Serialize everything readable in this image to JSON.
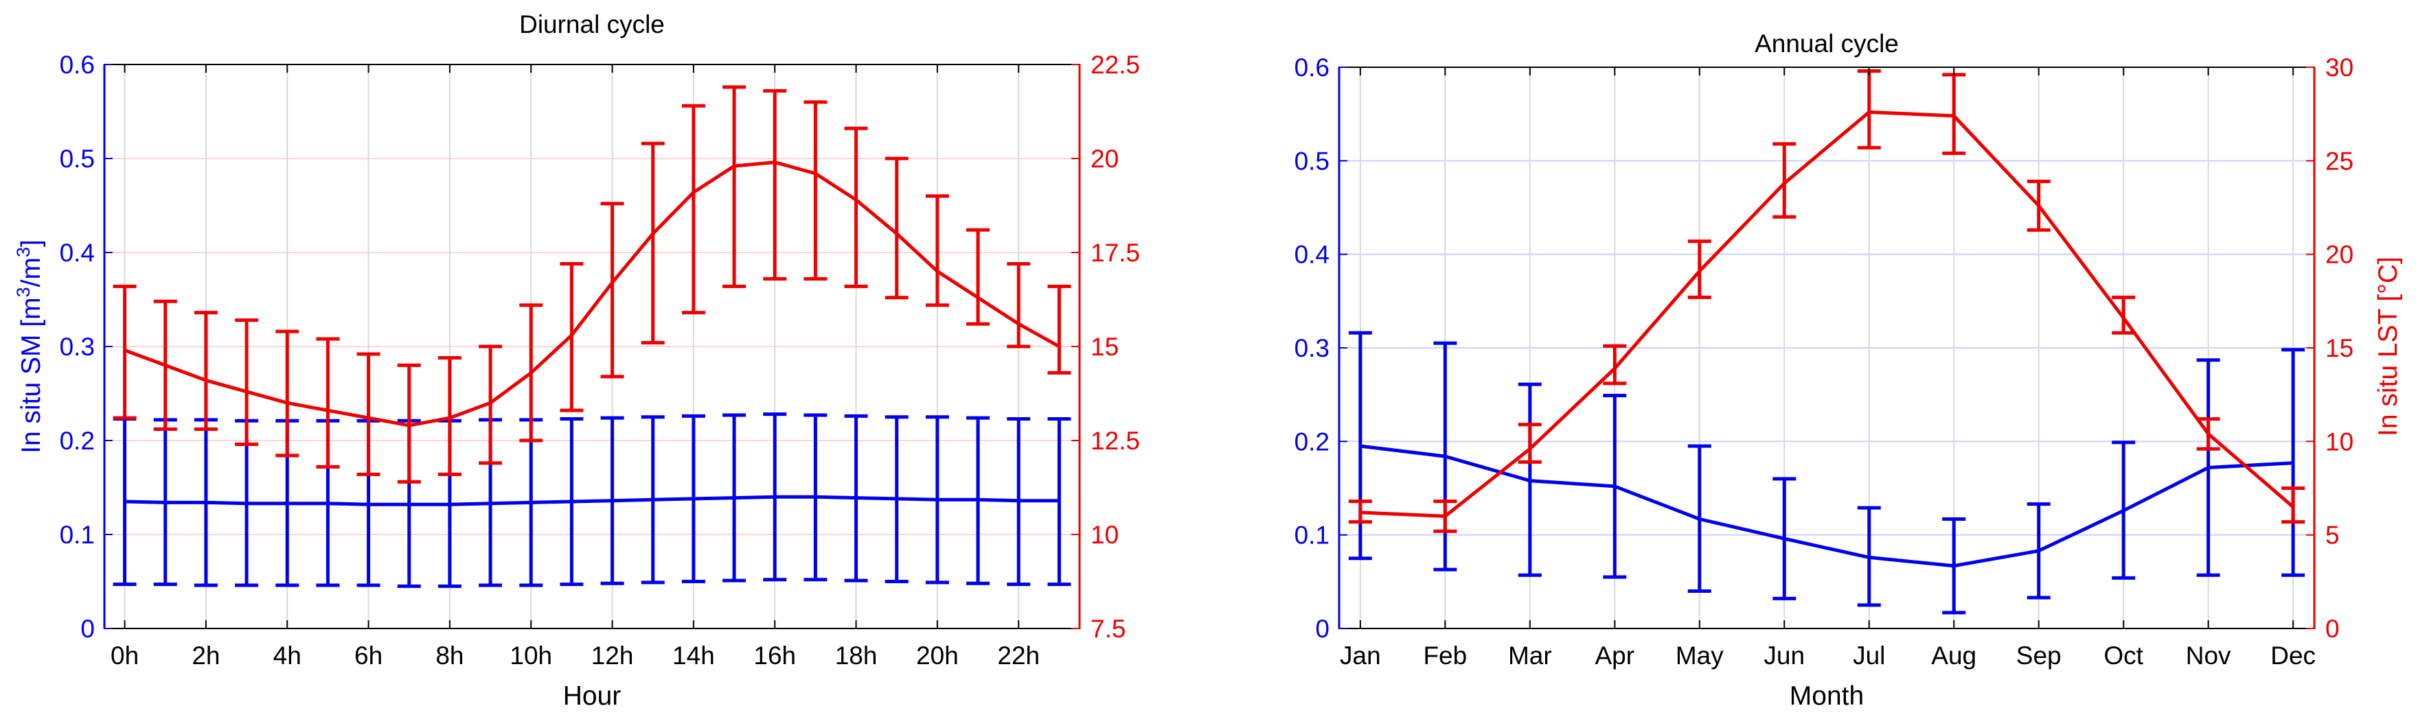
{
  "chart_data": [
    {
      "type": "line",
      "title": "Diurnal cycle",
      "xlabel": "Hour",
      "ylabel_left": "In situ SM [m³/m³]",
      "ylabel_left_parts": {
        "pre": "In situ SM [m",
        "sup1": "3",
        "mid": "/m",
        "sup2": "3",
        "post": "]"
      },
      "ylabel_right": "",
      "x": [
        0,
        1,
        2,
        3,
        4,
        5,
        6,
        7,
        8,
        9,
        10,
        11,
        12,
        13,
        14,
        15,
        16,
        17,
        18,
        19,
        20,
        21,
        22,
        23
      ],
      "xlim": [
        -0.5,
        23.5
      ],
      "xticks": [
        0,
        2,
        4,
        6,
        8,
        10,
        12,
        14,
        16,
        18,
        20,
        22
      ],
      "xticklabels": [
        "0h",
        "2h",
        "4h",
        "6h",
        "8h",
        "10h",
        "12h",
        "14h",
        "16h",
        "18h",
        "20h",
        "22h"
      ],
      "ylim_left": [
        0,
        0.6
      ],
      "yticks_left": [
        "0",
        "0.1",
        "0.2",
        "0.3",
        "0.4",
        "0.5",
        "0.6"
      ],
      "ylim_right": [
        7.5,
        22.5
      ],
      "yticks_right": [
        "7.5",
        "10",
        "12.5",
        "15",
        "17.5",
        "20",
        "22.5"
      ],
      "grid": true,
      "series": [
        {
          "axis": "left",
          "color": "#0000ee",
          "values": [
            0.135,
            0.134,
            0.134,
            0.133,
            0.133,
            0.133,
            0.132,
            0.132,
            0.132,
            0.133,
            0.134,
            0.135,
            0.136,
            0.137,
            0.138,
            0.139,
            0.14,
            0.14,
            0.139,
            0.138,
            0.137,
            0.137,
            0.136,
            0.136
          ],
          "lower": [
            0.047,
            0.047,
            0.046,
            0.046,
            0.046,
            0.046,
            0.046,
            0.045,
            0.045,
            0.046,
            0.046,
            0.047,
            0.048,
            0.049,
            0.05,
            0.051,
            0.052,
            0.052,
            0.051,
            0.05,
            0.049,
            0.048,
            0.047,
            0.047
          ],
          "upper": [
            0.223,
            0.222,
            0.222,
            0.221,
            0.221,
            0.221,
            0.221,
            0.221,
            0.221,
            0.222,
            0.222,
            0.223,
            0.224,
            0.225,
            0.226,
            0.227,
            0.228,
            0.227,
            0.226,
            0.225,
            0.225,
            0.224,
            0.223,
            0.223
          ]
        },
        {
          "axis": "right",
          "color": "#ee0000",
          "values": [
            14.9,
            14.5,
            14.1,
            13.8,
            13.5,
            13.3,
            13.1,
            12.9,
            13.1,
            13.5,
            14.3,
            15.3,
            16.7,
            18.0,
            19.1,
            19.8,
            19.9,
            19.6,
            18.9,
            18.0,
            17.0,
            16.3,
            15.6,
            15.0
          ],
          "lower": [
            13.1,
            12.8,
            12.8,
            12.4,
            12.1,
            11.8,
            11.6,
            11.4,
            11.6,
            11.9,
            12.5,
            13.3,
            14.2,
            15.1,
            15.9,
            16.6,
            16.8,
            16.8,
            16.6,
            16.3,
            16.1,
            15.6,
            15.0,
            14.3
          ],
          "upper": [
            16.6,
            16.2,
            15.9,
            15.7,
            15.4,
            15.2,
            14.8,
            14.5,
            14.7,
            15.0,
            16.1,
            17.2,
            18.8,
            20.4,
            21.4,
            21.9,
            21.8,
            21.5,
            20.8,
            20.0,
            19.0,
            18.1,
            17.2,
            16.6
          ]
        }
      ]
    },
    {
      "type": "line",
      "title": "Annual cycle",
      "xlabel": "Month",
      "ylabel_left": "",
      "ylabel_right": "In situ LST [°C]",
      "categories": [
        "Jan",
        "Feb",
        "Mar",
        "Apr",
        "May",
        "Jun",
        "Jul",
        "Aug",
        "Sep",
        "Oct",
        "Nov",
        "Dec"
      ],
      "xlim": [
        0.75,
        12.25
      ],
      "ylim_left": [
        0,
        0.6
      ],
      "yticks_left": [
        "0",
        "0.1",
        "0.2",
        "0.3",
        "0.4",
        "0.5",
        "0.6"
      ],
      "ylim_right": [
        0,
        30
      ],
      "yticks_right": [
        "0",
        "5",
        "10",
        "15",
        "20",
        "25",
        "30"
      ],
      "grid": true,
      "series": [
        {
          "axis": "left",
          "color": "#0000ee",
          "values": [
            0.195,
            0.184,
            0.158,
            0.152,
            0.117,
            0.096,
            0.076,
            0.067,
            0.083,
            0.126,
            0.172,
            0.177
          ],
          "lower": [
            0.075,
            0.063,
            0.057,
            0.055,
            0.04,
            0.032,
            0.025,
            0.017,
            0.033,
            0.054,
            0.057,
            0.057
          ],
          "upper": [
            0.316,
            0.305,
            0.261,
            0.249,
            0.195,
            0.16,
            0.129,
            0.117,
            0.133,
            0.199,
            0.287,
            0.298
          ]
        },
        {
          "axis": "right",
          "color": "#ee0000",
          "values": [
            6.2,
            6.0,
            9.6,
            13.9,
            19.1,
            23.8,
            27.6,
            27.4,
            22.6,
            16.6,
            10.4,
            6.5
          ],
          "lower": [
            5.7,
            5.2,
            8.9,
            13.1,
            17.7,
            22.0,
            25.7,
            25.4,
            21.3,
            15.8,
            9.6,
            5.7
          ],
          "upper": [
            6.8,
            6.8,
            10.9,
            15.1,
            20.7,
            25.9,
            29.8,
            29.6,
            23.9,
            17.7,
            11.2,
            7.5
          ]
        }
      ]
    }
  ]
}
